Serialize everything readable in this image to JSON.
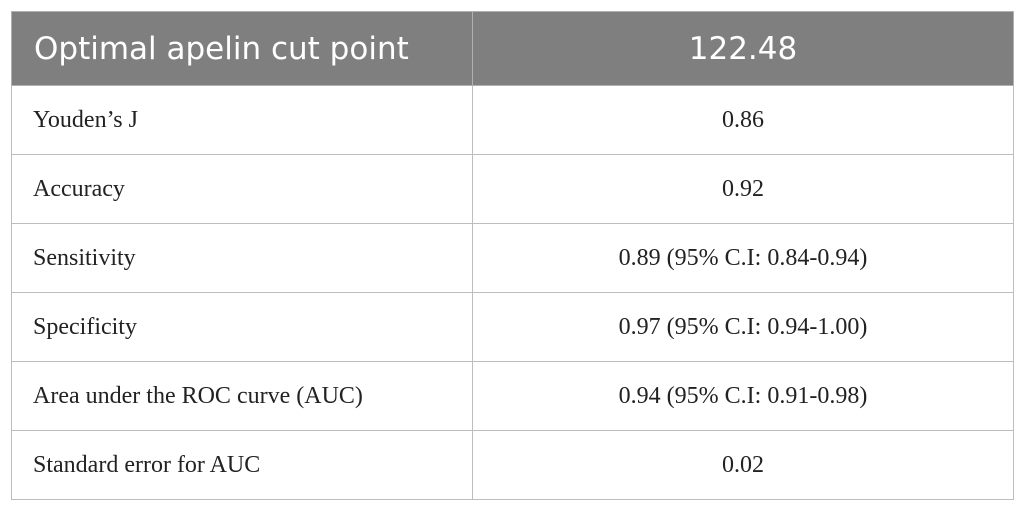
{
  "table": {
    "header": [
      "Optimal apelin cut point",
      "122.48"
    ],
    "rows": [
      [
        "Youden’s J",
        "0.86"
      ],
      [
        "Accuracy",
        "0.92"
      ],
      [
        "Sensitivity",
        "0.89 (95% C.I: 0.84-0.94)"
      ],
      [
        "Specificity",
        "0.97 (95% C.I: 0.94-1.00)"
      ],
      [
        "Area under the ROC curve (AUC)",
        "0.94 (95% C.I: 0.91-0.98)"
      ],
      [
        "Standard error for AUC",
        "0.02"
      ]
    ]
  }
}
